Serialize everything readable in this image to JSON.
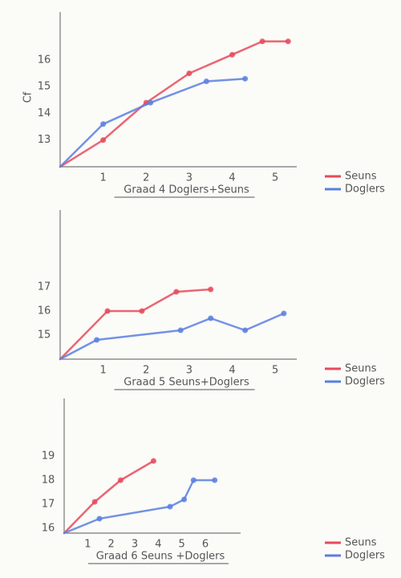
{
  "chart_data": [
    {
      "type": "line",
      "title": "Graad 4 Doglers+Seuns",
      "ylabel": "Cf",
      "xlim": [
        0,
        5.5
      ],
      "xticks": [
        1,
        2,
        3,
        4,
        5
      ],
      "ylim": [
        12,
        17.8
      ],
      "yticks": [
        13,
        14,
        15,
        16
      ],
      "series": [
        {
          "name": "Seuns",
          "color": "#e64a5a",
          "x": [
            0,
            1,
            2,
            3,
            4,
            4.7,
            5.3
          ],
          "values": [
            12,
            13,
            14.4,
            15.5,
            16.2,
            16.7,
            16.7
          ]
        },
        {
          "name": "Doglers",
          "color": "#5a7fe0",
          "x": [
            0,
            1,
            2.1,
            3.4,
            4.3
          ],
          "values": [
            12,
            13.6,
            14.4,
            15.2,
            15.3
          ]
        }
      ]
    },
    {
      "type": "line",
      "title": "Graad 5 Seuns+Doglers",
      "xlim": [
        0,
        5.5
      ],
      "xticks": [
        1,
        2,
        3,
        4,
        5
      ],
      "ylim": [
        14,
        20.2
      ],
      "yticks": [
        15,
        16,
        17
      ],
      "series": [
        {
          "name": "Seuns",
          "color": "#e64a5a",
          "x": [
            0,
            1.1,
            1.9,
            2.7,
            3.5
          ],
          "values": [
            14,
            16,
            16,
            16.8,
            16.9
          ]
        },
        {
          "name": "Doglers",
          "color": "#5a7fe0",
          "x": [
            0,
            0.85,
            2.8,
            3.5,
            4.3,
            5.2
          ],
          "values": [
            14,
            14.8,
            15.2,
            15.7,
            15.2,
            15.9
          ]
        }
      ]
    },
    {
      "type": "line",
      "title": "Graad 6 Seuns +Doglers",
      "xlim": [
        0,
        7.5
      ],
      "xticks": [
        1,
        2,
        3,
        4,
        5,
        6
      ],
      "ylim": [
        15.8,
        21.4
      ],
      "yticks": [
        16,
        17,
        18,
        19
      ],
      "series": [
        {
          "name": "Seuns",
          "color": "#e64a5a",
          "x": [
            0,
            1.3,
            2.4,
            3.8
          ],
          "values": [
            15.8,
            17.1,
            18,
            18.8
          ]
        },
        {
          "name": "Doglers",
          "color": "#5a7fe0",
          "x": [
            0,
            1.5,
            4.5,
            5.1,
            5.5,
            6.4
          ],
          "values": [
            15.8,
            16.4,
            16.9,
            17.2,
            18,
            18
          ]
        }
      ]
    }
  ]
}
